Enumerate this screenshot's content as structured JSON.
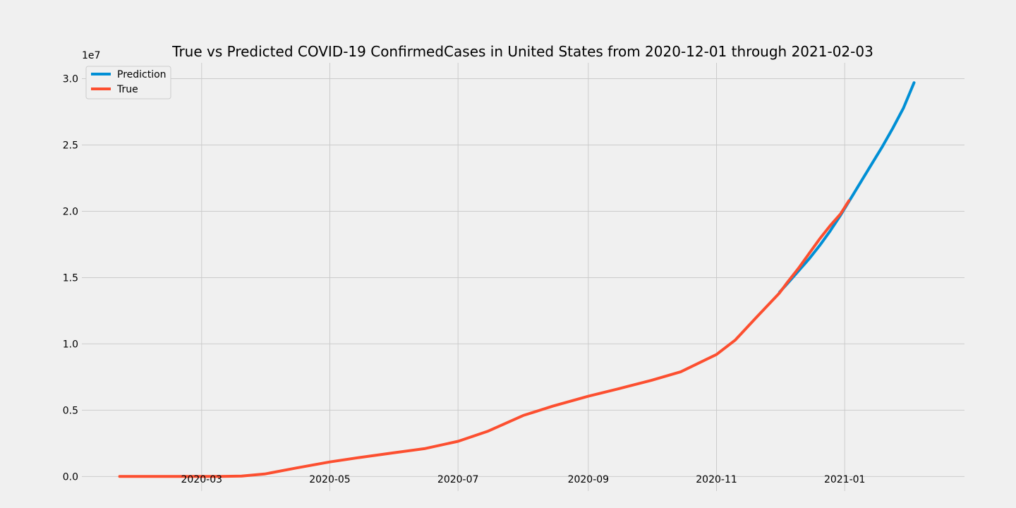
{
  "chart_data": {
    "type": "line",
    "title": "True vs Predicted COVID-19 ConfirmedCases in United States from 2020-12-01 through 2021-02-03",
    "xlabel": "",
    "ylabel": "",
    "y_offset_label": "1e7",
    "y_scale": 10000000,
    "xlim": [
      "2020-01-04",
      "2021-02-27"
    ],
    "ylim": [
      -1.1,
      31.2
    ],
    "grid": true,
    "legend_position": "top-left",
    "x_ticks": [
      {
        "date": "2020-03-01",
        "label": "2020-03"
      },
      {
        "date": "2020-05-01",
        "label": "2020-05"
      },
      {
        "date": "2020-07-01",
        "label": "2020-07"
      },
      {
        "date": "2020-09-01",
        "label": "2020-09"
      },
      {
        "date": "2020-11-01",
        "label": "2020-11"
      },
      {
        "date": "2021-01-01",
        "label": "2021-01"
      }
    ],
    "y_ticks": [
      {
        "value": 0.0,
        "label": "0.0"
      },
      {
        "value": 5.0,
        "label": "0.5"
      },
      {
        "value": 10.0,
        "label": "1.0"
      },
      {
        "value": 15.0,
        "label": "1.5"
      },
      {
        "value": 20.0,
        "label": "2.0"
      },
      {
        "value": 25.0,
        "label": "2.5"
      },
      {
        "value": 30.0,
        "label": "3.0"
      }
    ],
    "series": [
      {
        "name": "Prediction",
        "color": "#008fd5",
        "unit": "millions of cases",
        "points": [
          [
            "2020-12-01",
            13.9
          ],
          [
            "2020-12-05",
            14.6
          ],
          [
            "2020-12-10",
            15.5
          ],
          [
            "2020-12-15",
            16.4
          ],
          [
            "2020-12-20",
            17.4
          ],
          [
            "2020-12-25",
            18.5
          ],
          [
            "2020-12-30",
            19.7
          ],
          [
            "2021-01-04",
            21.0
          ],
          [
            "2021-01-09",
            22.3
          ],
          [
            "2021-01-14",
            23.6
          ],
          [
            "2021-01-19",
            24.9
          ],
          [
            "2021-01-24",
            26.3
          ],
          [
            "2021-01-29",
            27.8
          ],
          [
            "2021-02-03",
            29.7
          ]
        ]
      },
      {
        "name": "True",
        "color": "#fc4f30",
        "unit": "millions of cases",
        "points": [
          [
            "2020-01-22",
            0.0
          ],
          [
            "2020-02-15",
            0.0
          ],
          [
            "2020-03-10",
            0.0
          ],
          [
            "2020-03-20",
            0.03
          ],
          [
            "2020-03-31",
            0.19
          ],
          [
            "2020-04-15",
            0.64
          ],
          [
            "2020-05-01",
            1.1
          ],
          [
            "2020-05-15",
            1.43
          ],
          [
            "2020-06-01",
            1.8
          ],
          [
            "2020-06-15",
            2.1
          ],
          [
            "2020-07-01",
            2.65
          ],
          [
            "2020-07-15",
            3.4
          ],
          [
            "2020-08-01",
            4.6
          ],
          [
            "2020-08-15",
            5.3
          ],
          [
            "2020-09-01",
            6.05
          ],
          [
            "2020-09-15",
            6.6
          ],
          [
            "2020-10-01",
            7.25
          ],
          [
            "2020-10-15",
            7.9
          ],
          [
            "2020-11-01",
            9.2
          ],
          [
            "2020-11-10",
            10.3
          ],
          [
            "2020-11-20",
            12.0
          ],
          [
            "2020-12-01",
            13.85
          ],
          [
            "2020-12-05",
            14.7
          ],
          [
            "2020-12-10",
            15.7
          ],
          [
            "2020-12-15",
            16.8
          ],
          [
            "2020-12-20",
            17.9
          ],
          [
            "2020-12-25",
            18.9
          ],
          [
            "2020-12-30",
            19.8
          ],
          [
            "2021-01-03",
            20.8
          ]
        ]
      }
    ]
  }
}
